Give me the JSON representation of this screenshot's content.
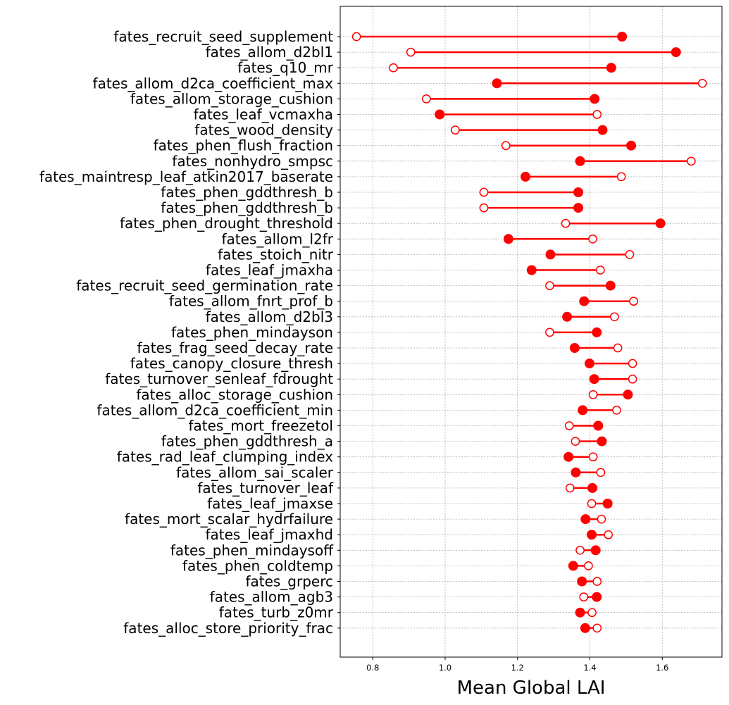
{
  "chart_data": {
    "type": "dumbbell",
    "xlabel": "Mean Global LAI",
    "ylabel": "",
    "title": "",
    "xlim": [
      0.71,
      1.765
    ],
    "xticks": [
      0.8,
      1.0,
      1.2,
      1.4,
      1.6
    ],
    "grid": true,
    "color": "#ff0000",
    "categories": [
      "fates_recruit_seed_supplement",
      "fates_allom_d2bl1",
      "fates_q10_mr",
      "fates_allom_d2ca_coefficient_max",
      "fates_allom_storage_cushion",
      "fates_leaf_vcmaxha",
      "fates_wood_density",
      "fates_phen_flush_fraction",
      "fates_nonhydro_smpsc",
      "fates_maintresp_leaf_atkin2017_baserate",
      "fates_phen_gddthresh_b",
      "fates_phen_gddthresh_b",
      "fates_phen_drought_threshold",
      "fates_allom_l2fr",
      "fates_stoich_nitr",
      "fates_leaf_jmaxha",
      "fates_recruit_seed_germination_rate",
      "fates_allom_fnrt_prof_b",
      "fates_allom_d2bl3",
      "fates_phen_mindayson",
      "fates_frag_seed_decay_rate",
      "fates_canopy_closure_thresh",
      "fates_turnover_senleaf_fdrought",
      "fates_alloc_storage_cushion",
      "fates_allom_d2ca_coefficient_min",
      "fates_mort_freezetol",
      "fates_phen_gddthresh_a",
      "fates_rad_leaf_clumping_index",
      "fates_allom_sai_scaler",
      "fates_turnover_leaf",
      "fates_leaf_jmaxse",
      "fates_mort_scalar_hydrfailure",
      "fates_leaf_jmaxhd",
      "fates_phen_mindaysoff",
      "fates_phen_coldtemp",
      "fates_grperc",
      "fates_allom_agb3",
      "fates_turb_z0mr",
      "fates_alloc_store_priority_frac"
    ],
    "series": [
      {
        "marker": "filled",
        "values": [
          1.489,
          1.638,
          1.459,
          1.143,
          1.413,
          0.985,
          1.435,
          1.514,
          1.373,
          1.222,
          1.368,
          1.368,
          1.595,
          1.175,
          1.291,
          1.239,
          1.457,
          1.384,
          1.337,
          1.419,
          1.358,
          1.399,
          1.412,
          1.505,
          1.38,
          1.423,
          1.433,
          1.341,
          1.361,
          1.407,
          1.449,
          1.388,
          1.405,
          1.416,
          1.354,
          1.378,
          1.419,
          1.373,
          1.387
        ]
      },
      {
        "marker": "hollow",
        "values": [
          0.755,
          0.905,
          0.857,
          1.711,
          0.948,
          1.42,
          1.028,
          1.168,
          1.68,
          1.487,
          1.107,
          1.107,
          1.333,
          1.408,
          1.51,
          1.429,
          1.289,
          1.521,
          1.468,
          1.289,
          1.477,
          1.518,
          1.518,
          1.409,
          1.474,
          1.343,
          1.36,
          1.409,
          1.43,
          1.345,
          1.405,
          1.432,
          1.451,
          1.373,
          1.396,
          1.42,
          1.383,
          1.406,
          1.42
        ]
      }
    ]
  }
}
